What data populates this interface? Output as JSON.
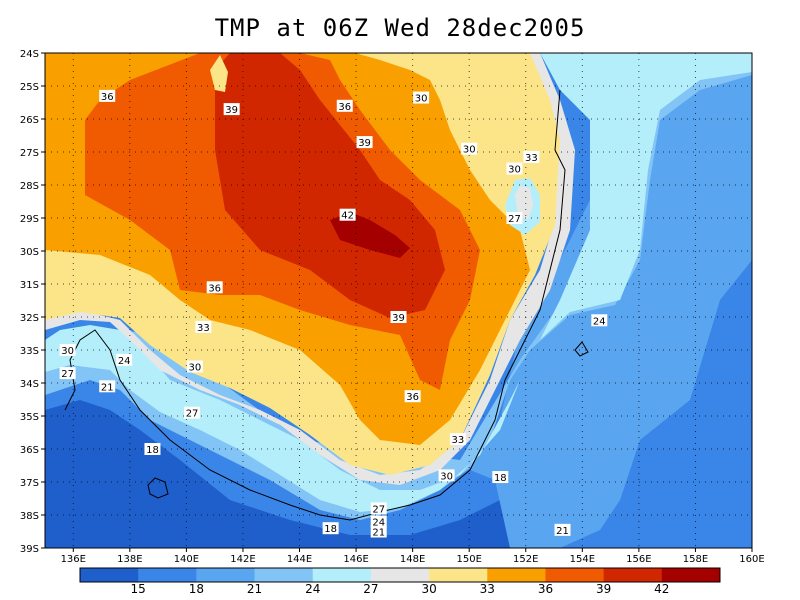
{
  "title": "TMP at 06Z Wed 28dec2005",
  "lat_ticks": [
    "24S",
    "25S",
    "26S",
    "27S",
    "28S",
    "29S",
    "30S",
    "31S",
    "32S",
    "33S",
    "34S",
    "35S",
    "36S",
    "37S",
    "38S",
    "39S"
  ],
  "lon_ticks": [
    "136E",
    "138E",
    "140E",
    "142E",
    "144E",
    "146E",
    "148E",
    "150E",
    "152E",
    "154E",
    "156E",
    "158E",
    "160E"
  ],
  "colorbar": {
    "labels": [
      "15",
      "18",
      "21",
      "24",
      "27",
      "30",
      "33",
      "36",
      "39",
      "42"
    ],
    "colors": [
      "#1f5fcc",
      "#3a86e8",
      "#5aa5f0",
      "#82c4f5",
      "#b4eefa",
      "#e6e6e6",
      "#fce588",
      "#f9a000",
      "#f05a00",
      "#d12700",
      "#a40000"
    ]
  },
  "contour_labels": [
    {
      "text": "36",
      "lon": 137.2,
      "lat": -25.3
    },
    {
      "text": "39",
      "lon": 141.6,
      "lat": -25.7
    },
    {
      "text": "36",
      "lon": 145.6,
      "lat": -25.6
    },
    {
      "text": "30",
      "lon": 148.3,
      "lat": -25.35
    },
    {
      "text": "39",
      "lon": 146.3,
      "lat": -26.7
    },
    {
      "text": "30",
      "lon": 150.0,
      "lat": -26.9
    },
    {
      "text": "30",
      "lon": 151.6,
      "lat": -27.5
    },
    {
      "text": "33",
      "lon": 152.2,
      "lat": -27.15
    },
    {
      "text": "42",
      "lon": 145.7,
      "lat": -28.9
    },
    {
      "text": "27",
      "lon": 151.6,
      "lat": -29.0
    },
    {
      "text": "36",
      "lon": 141.0,
      "lat": -31.1
    },
    {
      "text": "39",
      "lon": 147.5,
      "lat": -32.0
    },
    {
      "text": "24",
      "lon": 154.6,
      "lat": -32.1
    },
    {
      "text": "33",
      "lon": 140.6,
      "lat": -32.3
    },
    {
      "text": "30",
      "lon": 135.8,
      "lat": -33.0
    },
    {
      "text": "24",
      "lon": 137.8,
      "lat": -33.3
    },
    {
      "text": "30",
      "lon": 140.3,
      "lat": -33.5
    },
    {
      "text": "27",
      "lon": 135.8,
      "lat": -33.7
    },
    {
      "text": "21",
      "lon": 137.2,
      "lat": -34.1
    },
    {
      "text": "36",
      "lon": 148.0,
      "lat": -34.4
    },
    {
      "text": "27",
      "lon": 140.2,
      "lat": -34.9
    },
    {
      "text": "33",
      "lon": 149.6,
      "lat": -35.7
    },
    {
      "text": "18",
      "lon": 138.8,
      "lat": -36.0
    },
    {
      "text": "30",
      "lon": 149.2,
      "lat": -36.8
    },
    {
      "text": "18",
      "lon": 151.1,
      "lat": -36.85
    },
    {
      "text": "27",
      "lon": 146.8,
      "lat": -37.8
    },
    {
      "text": "24",
      "lon": 146.8,
      "lat": -38.2
    },
    {
      "text": "21",
      "lon": 146.8,
      "lat": -38.5
    },
    {
      "text": "18",
      "lon": 145.1,
      "lat": -38.4
    },
    {
      "text": "21",
      "lon": 153.3,
      "lat": -38.45
    }
  ]
}
